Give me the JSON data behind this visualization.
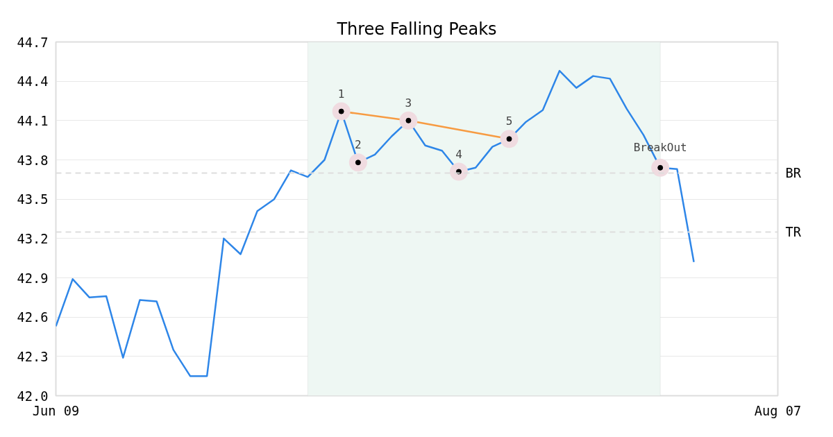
{
  "chart_data": {
    "type": "line",
    "title": "Three Falling Peaks",
    "categories": [
      "Jun 09",
      null,
      null,
      null,
      null,
      null,
      null,
      null,
      null,
      null,
      null,
      null,
      null,
      null,
      null,
      null,
      null,
      null,
      null,
      null,
      null,
      null,
      null,
      null,
      null,
      null,
      null,
      null,
      null,
      null,
      null,
      null,
      null,
      null,
      null,
      null,
      null,
      null,
      null,
      null,
      null,
      null,
      null,
      "Aug 07"
    ],
    "series": [
      {
        "color": "#2e86e8",
        "values": [
          42.53,
          42.89,
          42.75,
          42.76,
          42.29,
          42.73,
          42.72,
          42.35,
          42.15,
          42.15,
          43.2,
          43.08,
          43.41,
          43.5,
          43.72,
          43.67,
          43.8,
          44.17,
          43.78,
          43.84,
          43.98,
          44.1,
          43.91,
          43.87,
          43.71,
          43.74,
          43.9,
          43.96,
          44.09,
          44.18,
          44.48,
          44.35,
          44.44,
          44.42,
          44.19,
          43.99,
          43.74,
          43.73,
          43.02,
          null,
          null,
          null,
          null,
          null
        ]
      },
      {
        "color": "#f79b42",
        "values": [
          null,
          null,
          null,
          null,
          null,
          null,
          null,
          null,
          null,
          null,
          null,
          null,
          null,
          null,
          null,
          null,
          null,
          44.17,
          null,
          null,
          null,
          44.1,
          null,
          null,
          null,
          null,
          null,
          43.96,
          null,
          null,
          null,
          null,
          null,
          null,
          null,
          null,
          null,
          null,
          null,
          null,
          null,
          null,
          null,
          null
        ]
      },
      {
        "type": "scatter",
        "color": "#000000",
        "marker": "circle",
        "values": [
          null,
          null,
          null,
          null,
          null,
          null,
          null,
          null,
          null,
          null,
          null,
          null,
          null,
          null,
          null,
          null,
          null,
          44.17,
          43.78,
          null,
          null,
          44.1,
          null,
          null,
          43.71,
          null,
          null,
          43.96,
          null,
          null,
          null,
          null,
          null,
          null,
          null,
          null,
          43.74,
          null,
          null,
          null,
          null,
          null,
          null,
          null
        ]
      }
    ],
    "annotations": [
      {
        "text": "1",
        "y": 44.17
      },
      {
        "text": "2",
        "y": 43.78
      },
      {
        "text": "3",
        "y": 44.1
      },
      {
        "text": "4",
        "y": 43.71
      },
      {
        "text": "5",
        "y": 43.96
      },
      {
        "text": "BreakOut",
        "y": 43.74
      }
    ],
    "ref_lines": [
      {
        "axis": "y",
        "value": 43.7,
        "label": "BR",
        "color": "#dddddd",
        "line_style": "dashed"
      },
      {
        "axis": "y",
        "value": 43.25,
        "label": "TR",
        "color": "#dddddd",
        "line_style": "dashed"
      }
    ],
    "ylim": [
      42.0,
      44.7
    ],
    "yticks": [
      {
        "value": 42,
        "label": "42.0"
      },
      42.3,
      42.6,
      42.9,
      43.2,
      43.5,
      43.8,
      44.1,
      44.4,
      44.7
    ],
    "grid": "y"
  }
}
